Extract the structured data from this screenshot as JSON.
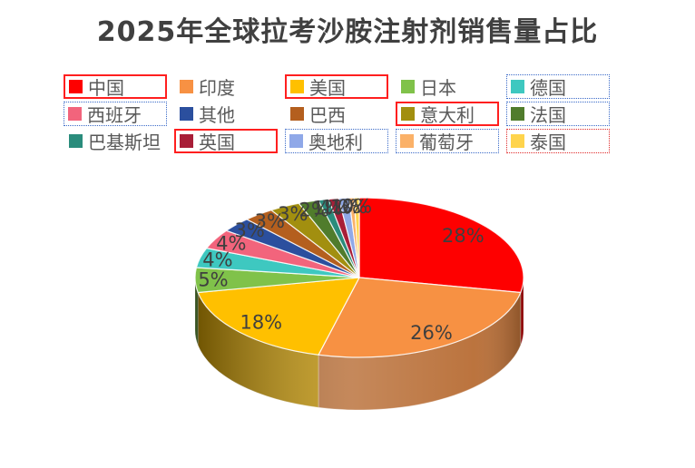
{
  "chart_data": {
    "type": "pie",
    "is_3d": true,
    "title": "2025年全球拉考沙胺注射剂销售量占比",
    "title_color": "#404040",
    "label_color": "#3F3F3F",
    "legend_position": "top",
    "legend_text_color": "#595959",
    "series": [
      {
        "name": "中国",
        "value": 28,
        "label": "28%",
        "color": "#FE0000",
        "box": "solid-red"
      },
      {
        "name": "印度",
        "value": 26,
        "label": "26%",
        "color": "#F79143",
        "box": "none"
      },
      {
        "name": "美国",
        "value": 18,
        "label": "18%",
        "color": "#FFC000",
        "box": "solid-red"
      },
      {
        "name": "日本",
        "value": 5,
        "label": "5%",
        "color": "#80C24A",
        "box": "none"
      },
      {
        "name": "德国",
        "value": 4,
        "label": "4%",
        "color": "#3EC8C0",
        "box": "dotted-blue"
      },
      {
        "name": "西班牙",
        "value": 4,
        "label": "4%",
        "color": "#F2647C",
        "box": "dotted-blue"
      },
      {
        "name": "其他",
        "value": 3,
        "label": "3%",
        "color": "#2B4F9E",
        "box": "none"
      },
      {
        "name": "巴西",
        "value": 3,
        "label": "3%",
        "color": "#B45F1E",
        "box": "none"
      },
      {
        "name": "意大利",
        "value": 3,
        "label": "3%",
        "color": "#A28F0F",
        "box": "solid-red"
      },
      {
        "name": "法国",
        "value": 2,
        "label": "2%",
        "color": "#507C2C",
        "box": "dotted-blue"
      },
      {
        "name": "巴基斯坦",
        "value": 1,
        "label": "1%",
        "color": "#2A8C7C",
        "box": "none"
      },
      {
        "name": "英国",
        "value": 1,
        "label": "1%",
        "color": "#A81E38",
        "box": "solid-red"
      },
      {
        "name": "奥地利",
        "value": 1,
        "label": "1%",
        "color": "#8FA8E8",
        "box": "dotted-blue"
      },
      {
        "name": "葡萄牙",
        "value": 0.5,
        "label": "0%",
        "color": "#FBB168",
        "box": "dotted-blue"
      },
      {
        "name": "泰国",
        "value": 0.5,
        "label": "0%",
        "color": "#FFD44C",
        "box": "dotted-red"
      }
    ],
    "box_styles": {
      "solid-red": {
        "style": "solid",
        "color": "#FF1F1F",
        "width": 2
      },
      "dotted-blue": {
        "style": "dotted",
        "color": "#3A6AC8",
        "width": 1
      },
      "dotted-red": {
        "style": "dotted",
        "color": "#E02A2A",
        "width": 1
      }
    }
  }
}
